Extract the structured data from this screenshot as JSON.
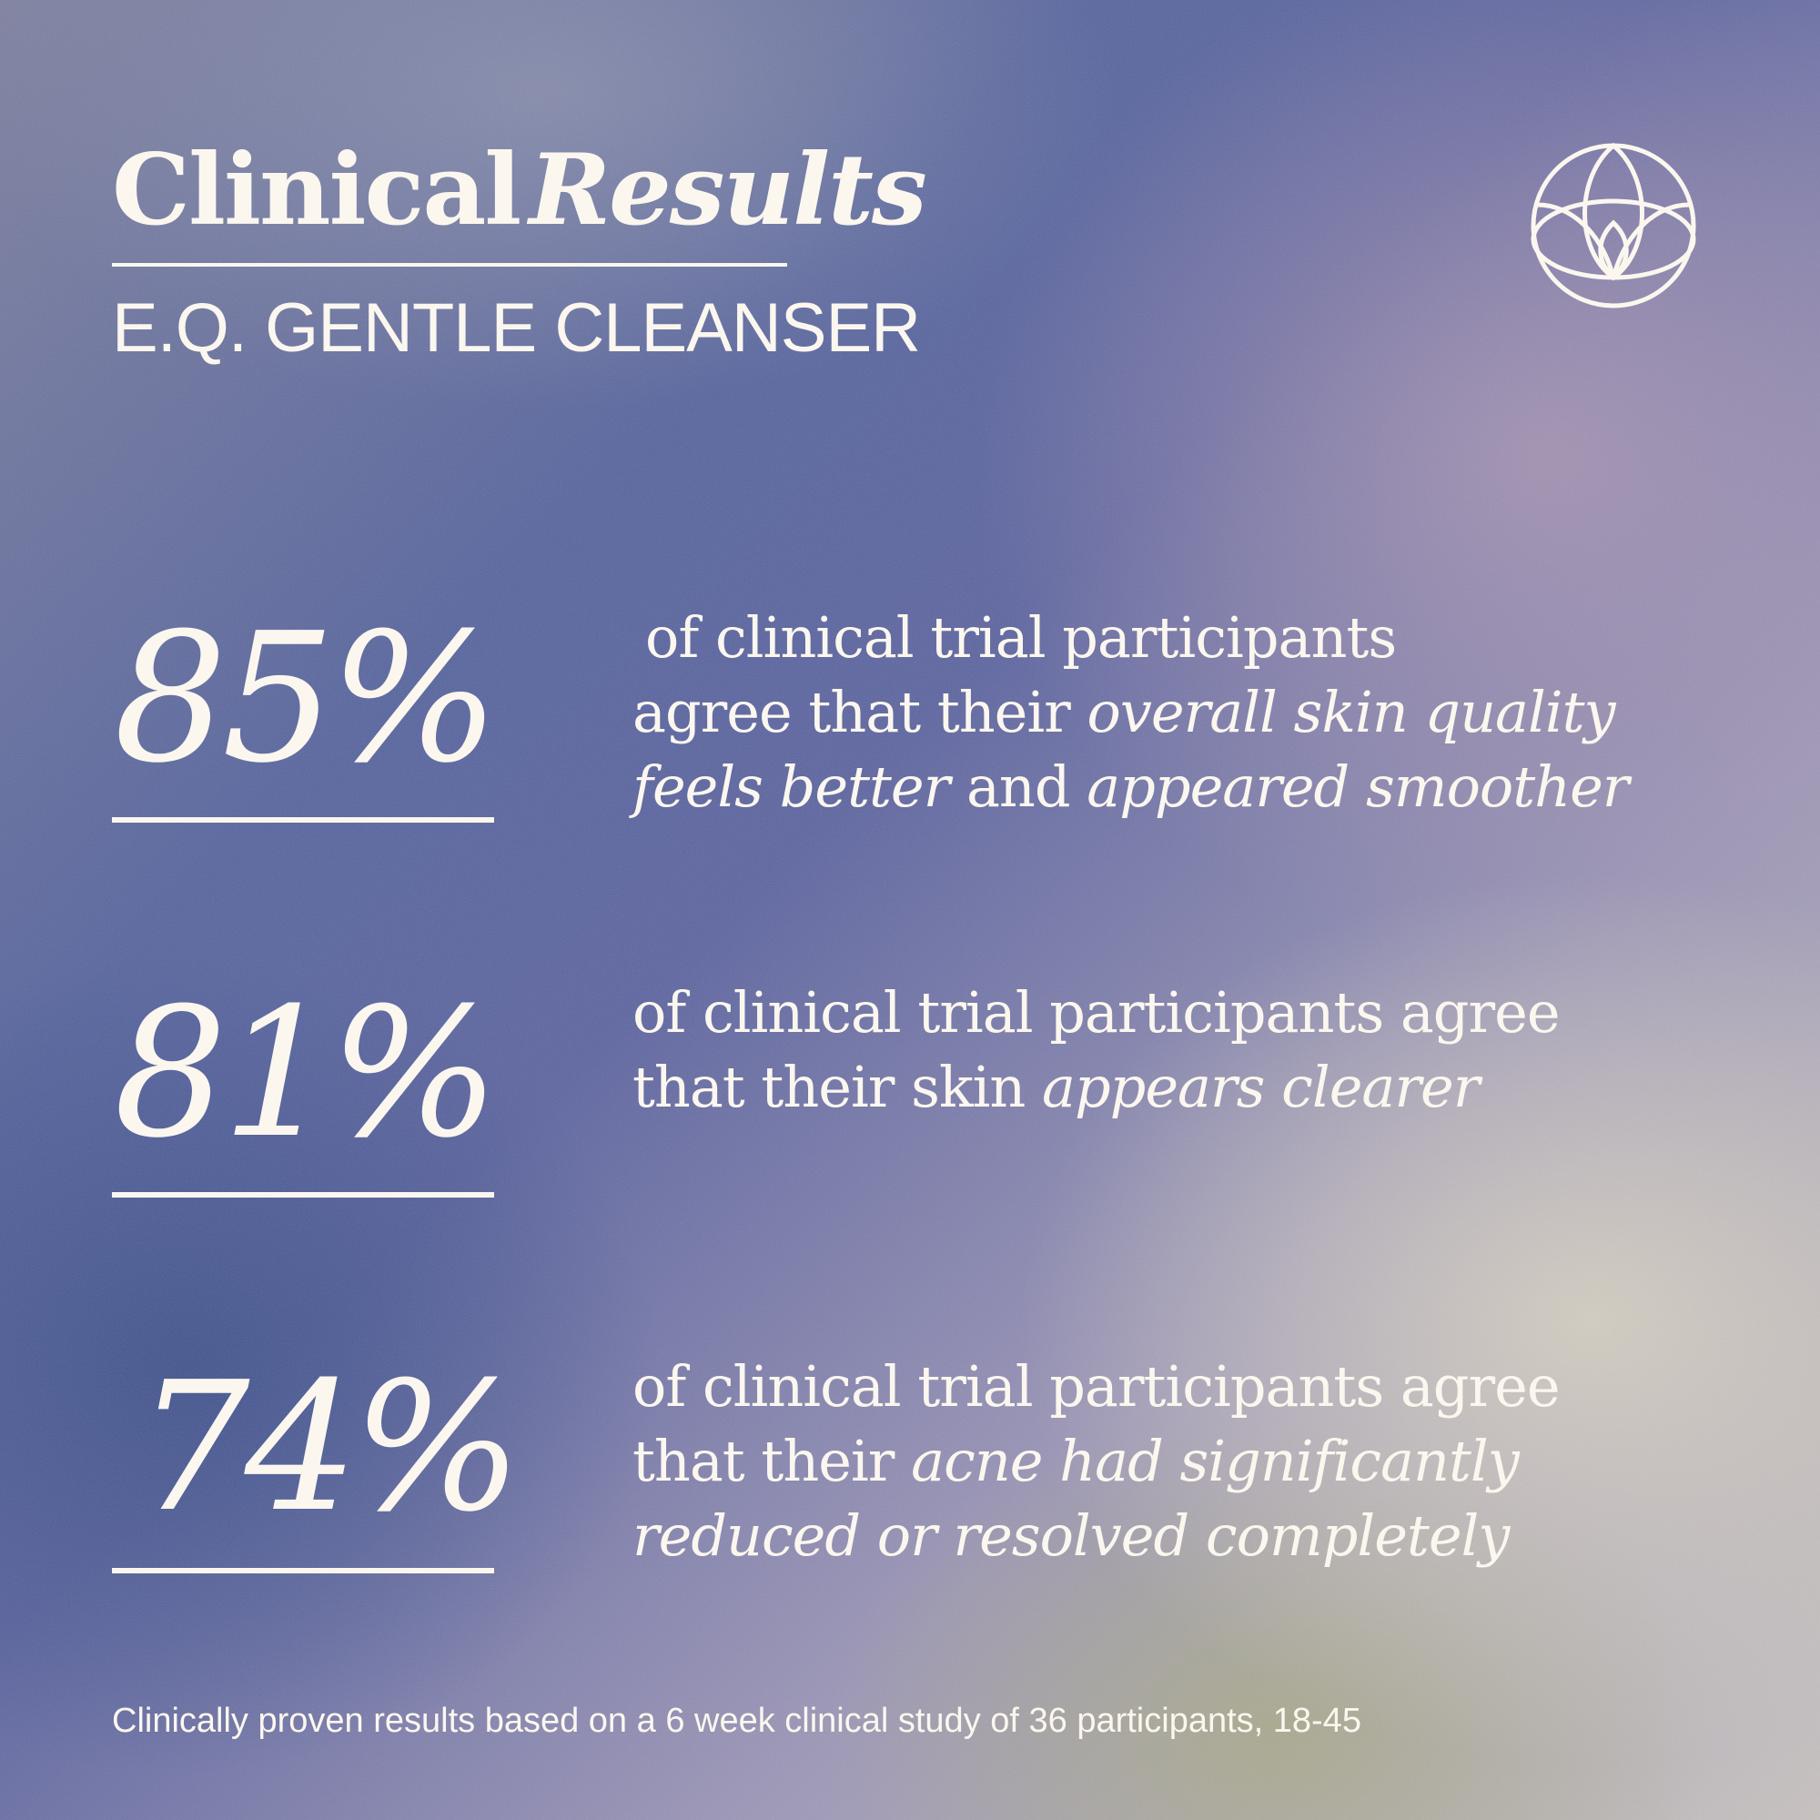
{
  "header": {
    "title_regular": "Clinical",
    "title_italic": "Results",
    "subtitle": "E.Q. GENTLE CLEANSER"
  },
  "logo": {
    "icon": "lotus-globe-icon"
  },
  "stats": [
    {
      "value": "85%",
      "text": {
        "line1": "of clinical trial participants",
        "line2_regular": "agree that their ",
        "line2_italic": "overall skin quality",
        "line3_italic1": "feels better",
        "line3_regular": " and ",
        "line3_italic2": "appeared smoother"
      }
    },
    {
      "value": "81%",
      "text": {
        "line1": "of clinical trial participants agree",
        "line2_regular": "that their skin ",
        "line2_italic": "appears clearer"
      }
    },
    {
      "value": "74%",
      "text": {
        "line1": "of clinical trial participants agree",
        "line2_regular": "that their ",
        "line2_italic": "acne had significantly",
        "line3_italic": "reduced or resolved completely"
      }
    }
  ],
  "footnote": "Clinically proven results based on a 6 week clinical study  of 36 participants, 18-45",
  "colors": {
    "text": "#fbf7ef",
    "background_blue": "#55639e",
    "background_cream": "#c8c2c0"
  }
}
